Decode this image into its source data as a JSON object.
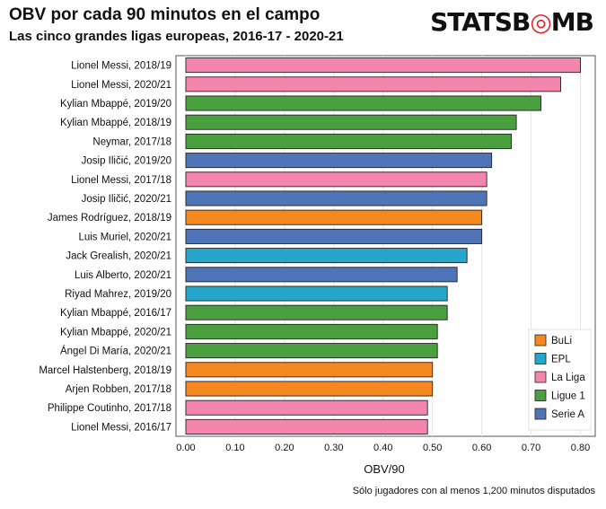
{
  "chart_data": {
    "type": "bar",
    "orientation": "horizontal",
    "title": "OBV por cada 90 minutos en el campo",
    "subtitle": "Las cinco grandes ligas europeas, 2016-17 - 2020-21",
    "xlabel": "OBV/90",
    "xlim": [
      -0.02,
      0.83
    ],
    "xticks": [
      "0.00",
      "0.10",
      "0.20",
      "0.30",
      "0.40",
      "0.50",
      "0.60",
      "0.70",
      "0.80"
    ],
    "grid": true,
    "legend_position": "bottom-right",
    "categories": [
      "Lionel Messi, 2018/19",
      "Lionel Messi, 2020/21",
      "Kylian Mbappé, 2019/20",
      "Kylian Mbappé, 2018/19",
      "Neymar, 2017/18",
      "Josip Iličić, 2019/20",
      "Lionel Messi, 2017/18",
      "Josip Iličić, 2020/21",
      "James Rodríguez, 2018/19",
      "Luis Muriel, 2020/21",
      "Jack Grealish, 2020/21",
      "Luis Alberto, 2020/21",
      "Riyad Mahrez, 2019/20",
      "Kylian Mbappé, 2016/17",
      "Kylian Mbappé, 2020/21",
      "Ángel Di María, 2020/21",
      "Marcel Halstenberg, 2018/19",
      "Arjen Robben, 2017/18",
      "Philippe Coutinho, 2017/18",
      "Lionel Messi, 2016/17"
    ],
    "values": [
      0.8,
      0.76,
      0.72,
      0.67,
      0.66,
      0.62,
      0.61,
      0.61,
      0.6,
      0.6,
      0.57,
      0.55,
      0.53,
      0.53,
      0.51,
      0.51,
      0.5,
      0.5,
      0.49,
      0.49
    ],
    "leagues": [
      "La Liga",
      "La Liga",
      "Ligue 1",
      "Ligue 1",
      "Ligue 1",
      "Serie A",
      "La Liga",
      "Serie A",
      "BuLi",
      "Serie A",
      "EPL",
      "Serie A",
      "EPL",
      "Ligue 1",
      "Ligue 1",
      "Ligue 1",
      "BuLi",
      "BuLi",
      "La Liga",
      "La Liga"
    ],
    "legend": [
      {
        "name": "BuLi",
        "color": "#f5891f"
      },
      {
        "name": "EPL",
        "color": "#26a6cb"
      },
      {
        "name": "La Liga",
        "color": "#f486ae"
      },
      {
        "name": "Ligue 1",
        "color": "#4a9f3e"
      },
      {
        "name": "Serie A",
        "color": "#4f74b8"
      }
    ]
  },
  "footnote": "Sólo jugadores con al menos 1,200 minutos disputados",
  "brand": {
    "part1": "STATS",
    "part2": "B",
    "part3": "MB",
    "accent_glyph": "◎",
    "accent_color": "#e8262b"
  }
}
